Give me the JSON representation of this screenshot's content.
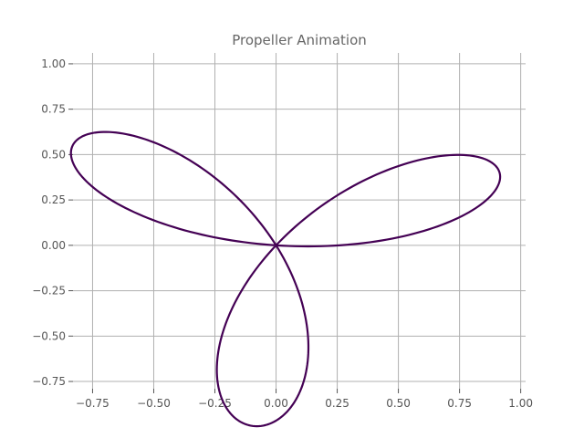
{
  "chart_data": {
    "type": "line",
    "title": "Propeller Animation",
    "xlabel": "",
    "ylabel": "",
    "xlim": [
      -0.83,
      1.02
    ],
    "ylim": [
      -0.79,
      1.06
    ],
    "grid": true,
    "legend": "none",
    "line_color": "#440154",
    "xticks": [
      -0.75,
      -0.5,
      -0.25,
      0.0,
      0.25,
      0.5,
      0.75,
      1.0
    ],
    "yticks": [
      -0.75,
      -0.5,
      -0.25,
      0.0,
      0.25,
      0.5,
      0.75,
      1.0
    ],
    "xtick_labels": [
      "−0.75",
      "−0.50",
      "−0.25",
      "0.00",
      "0.25",
      "0.50",
      "0.75",
      "1.00"
    ],
    "ytick_labels": [
      "−0.75",
      "−0.50",
      "−0.25",
      "0.00",
      "0.25",
      "0.50",
      "0.75",
      "1.00"
    ],
    "series": [
      {
        "curve": "rose",
        "r": "cos(3*theta)",
        "rotation_deg": 25,
        "theta_range": [
          0,
          3.14159
        ],
        "samples": 360
      }
    ]
  }
}
